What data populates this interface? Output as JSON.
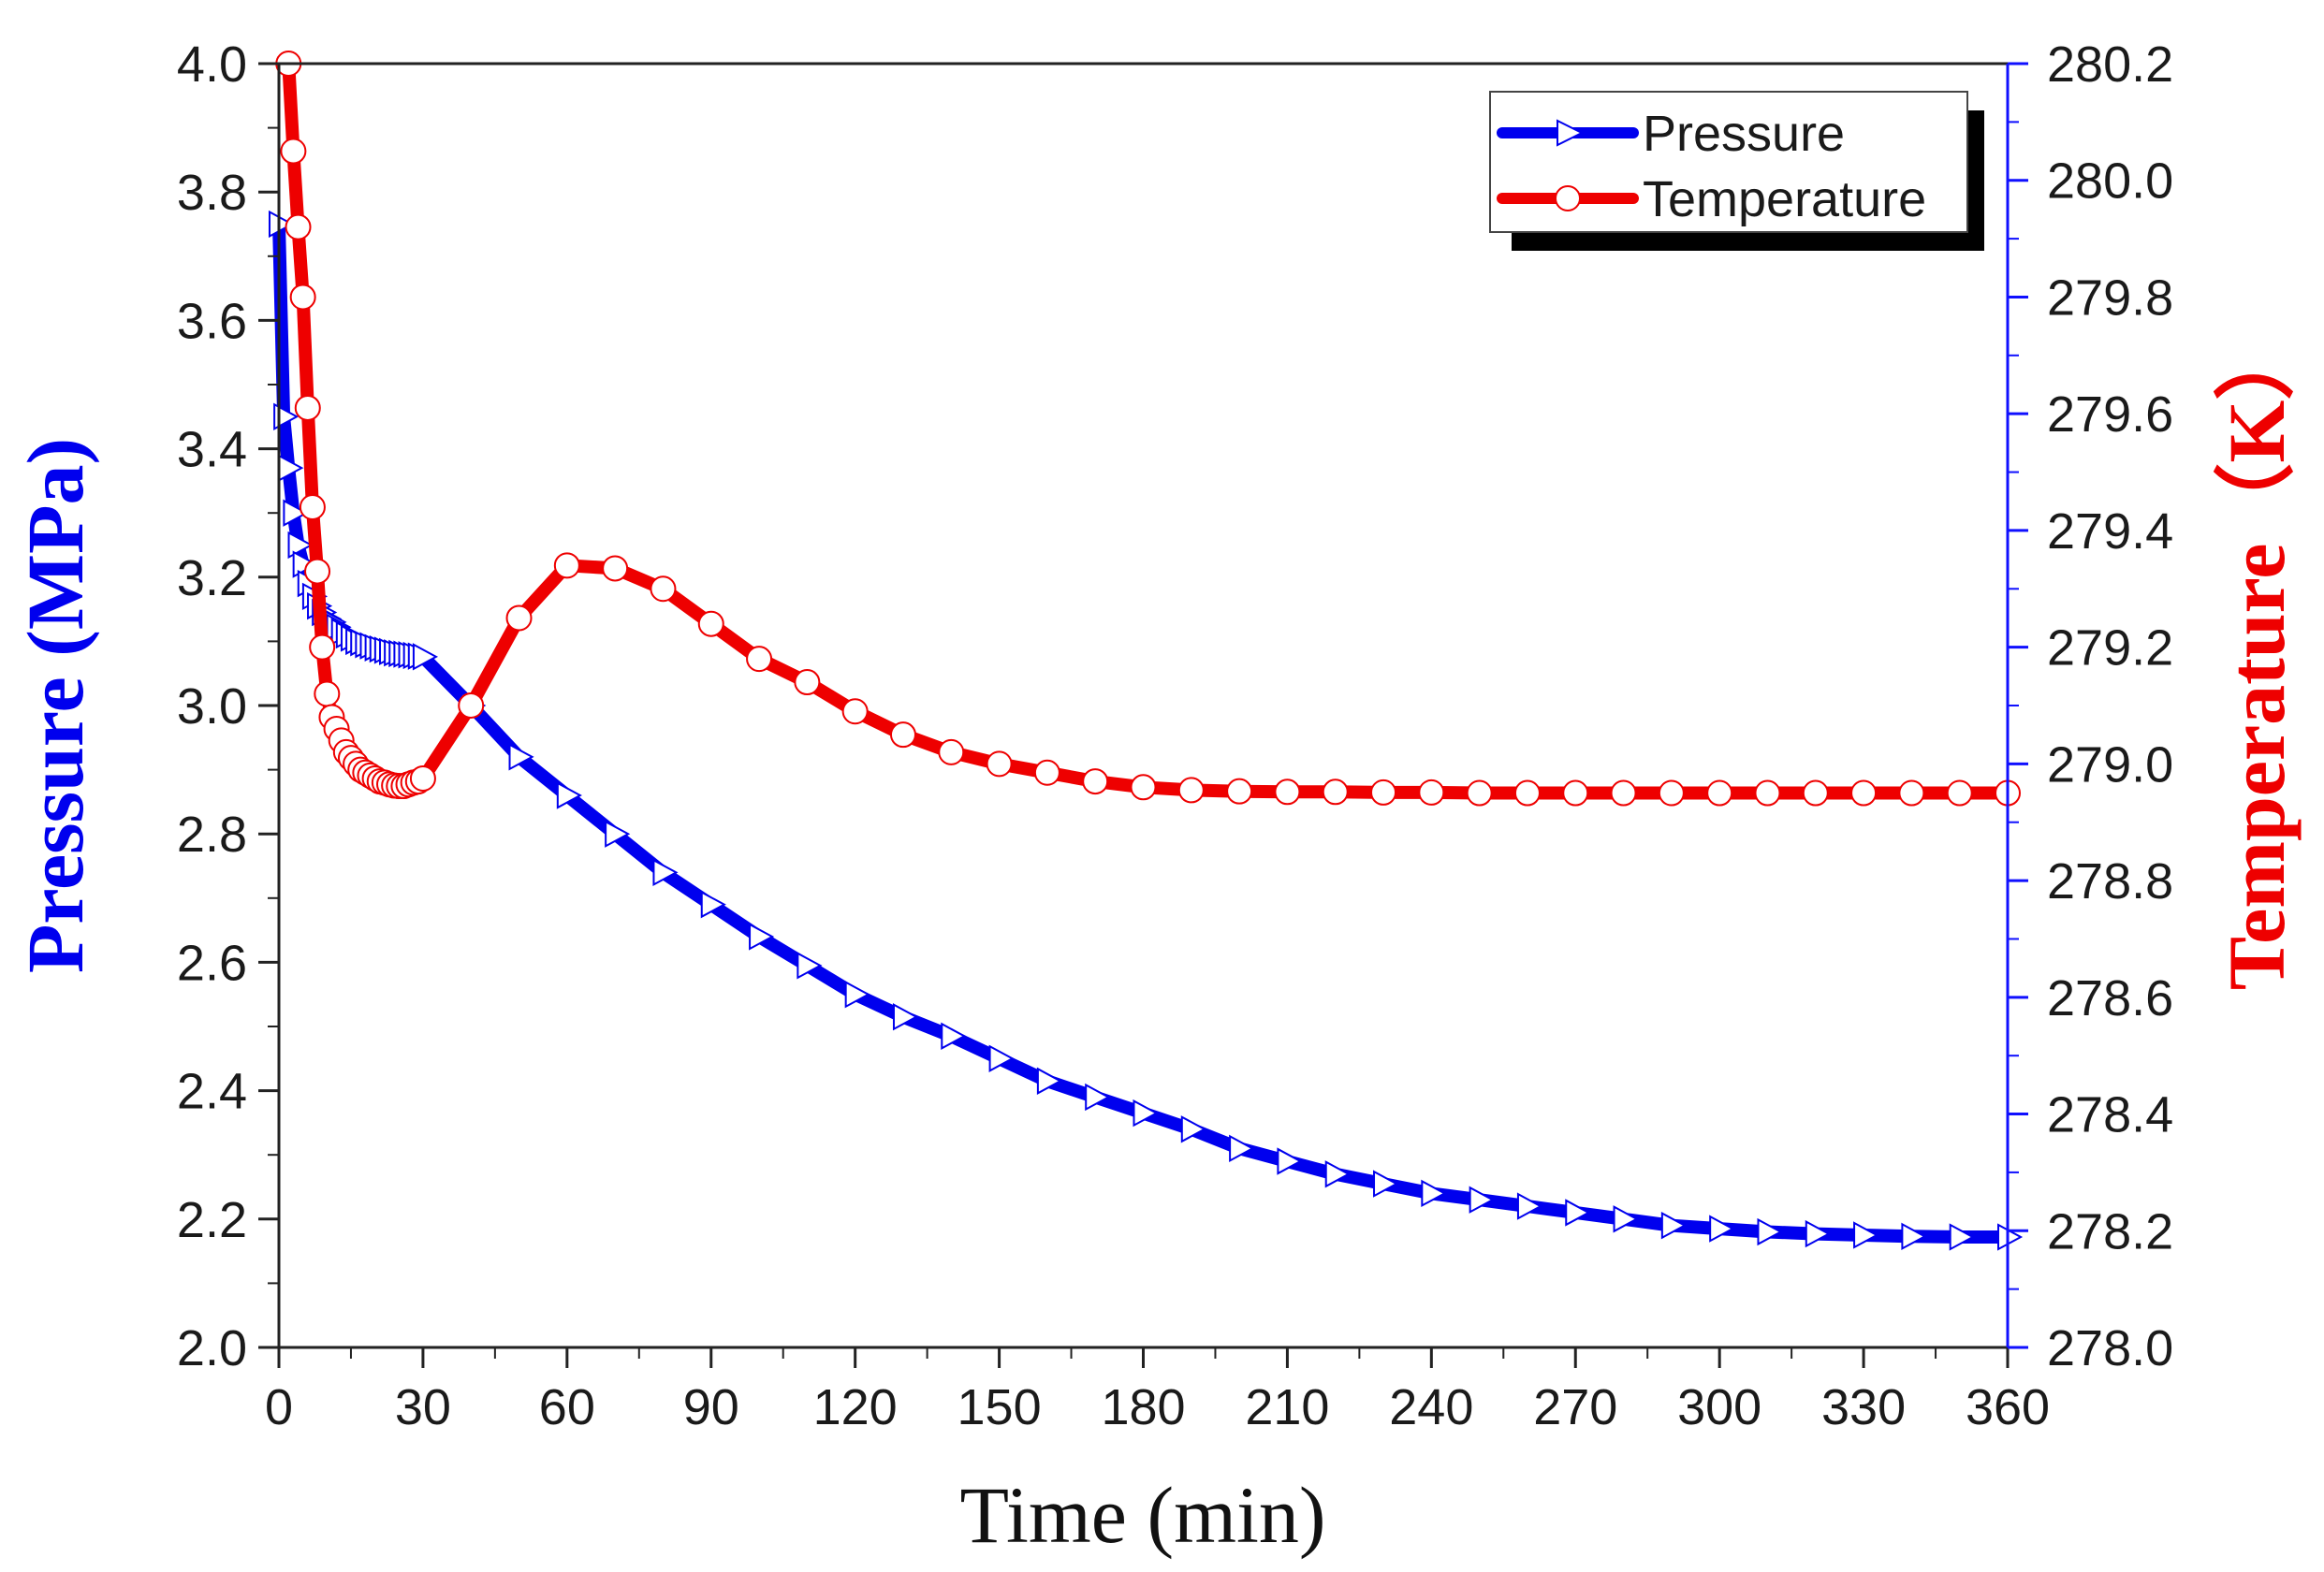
{
  "chart_data": {
    "type": "line",
    "title": "",
    "xlabel": "Time (min)",
    "ylabel_left": "Pressure (MPa)",
    "ylabel_right": "Temperature（K）",
    "xlim": [
      0,
      360
    ],
    "ylim_left": [
      2.0,
      4.0
    ],
    "ylim_right": [
      278.0,
      280.2
    ],
    "x_ticks": [
      "0",
      "30",
      "60",
      "90",
      "120",
      "150",
      "180",
      "210",
      "240",
      "270",
      "300",
      "330",
      "360"
    ],
    "y_left_ticks": [
      "2.0",
      "2.2",
      "2.4",
      "2.6",
      "2.8",
      "3.0",
      "3.2",
      "3.4",
      "3.6",
      "3.8",
      "4.0"
    ],
    "y_right_ticks": [
      "278.0",
      "278.2",
      "278.4",
      "278.6",
      "278.8",
      "279.0",
      "279.2",
      "279.4",
      "279.6",
      "279.8",
      "280.0",
      "280.2"
    ],
    "grid": false,
    "legend_position": "top-right",
    "series": [
      {
        "name": "Pressure",
        "axis": "left",
        "color": "#0000ee",
        "marker": "triangle-right",
        "x": [
          0,
          1,
          2,
          3,
          4,
          5,
          6,
          7,
          8,
          9,
          10,
          11,
          12,
          13,
          14,
          15,
          16,
          17,
          18,
          19,
          20,
          21,
          22,
          23,
          24,
          25,
          26,
          27,
          28,
          29,
          30,
          40,
          50,
          60,
          70,
          80,
          90,
          100,
          110,
          120,
          130,
          140,
          150,
          160,
          170,
          180,
          190,
          200,
          210,
          220,
          230,
          240,
          250,
          260,
          270,
          280,
          290,
          300,
          310,
          320,
          330,
          340,
          350,
          360
        ],
        "values": [
          3.75,
          3.45,
          3.37,
          3.3,
          3.25,
          3.22,
          3.19,
          3.17,
          3.155,
          3.145,
          3.135,
          3.13,
          3.122,
          3.115,
          3.11,
          3.105,
          3.1,
          3.098,
          3.095,
          3.093,
          3.09,
          3.088,
          3.086,
          3.084,
          3.082,
          3.081,
          3.08,
          3.079,
          3.078,
          3.077,
          3.076,
          3.0,
          2.92,
          2.86,
          2.8,
          2.74,
          2.69,
          2.64,
          2.595,
          2.55,
          2.515,
          2.485,
          2.45,
          2.415,
          2.39,
          2.365,
          2.34,
          2.31,
          2.29,
          2.27,
          2.255,
          2.24,
          2.23,
          2.22,
          2.21,
          2.2,
          2.19,
          2.185,
          2.18,
          2.177,
          2.175,
          2.173,
          2.172,
          2.172
        ]
      },
      {
        "name": "Temperature",
        "axis": "right",
        "color": "#ee0000",
        "marker": "circle",
        "x": [
          2,
          3,
          4,
          5,
          6,
          7,
          8,
          9,
          10,
          11,
          12,
          13,
          14,
          15,
          16,
          17,
          18,
          19,
          20,
          21,
          22,
          23,
          24,
          25,
          26,
          27,
          28,
          29,
          30,
          40,
          50,
          60,
          70,
          80,
          90,
          100,
          110,
          120,
          130,
          140,
          150,
          160,
          170,
          180,
          190,
          200,
          210,
          220,
          230,
          240,
          250,
          260,
          270,
          280,
          290,
          300,
          310,
          320,
          330,
          340,
          350,
          360
        ],
        "values": [
          280.2,
          280.05,
          279.92,
          279.8,
          279.61,
          279.44,
          279.33,
          279.2,
          279.12,
          279.08,
          279.06,
          279.04,
          279.02,
          279.01,
          279.0,
          278.99,
          278.985,
          278.98,
          278.975,
          278.97,
          278.968,
          278.965,
          278.963,
          278.962,
          278.962,
          278.965,
          278.968,
          278.97,
          278.975,
          279.1,
          279.25,
          279.34,
          279.335,
          279.3,
          279.24,
          279.18,
          279.14,
          279.09,
          279.05,
          279.02,
          279.0,
          278.985,
          278.97,
          278.96,
          278.955,
          278.953,
          278.952,
          278.952,
          278.951,
          278.951,
          278.95,
          278.95,
          278.95,
          278.95,
          278.95,
          278.95,
          278.95,
          278.95,
          278.95,
          278.95,
          278.95,
          278.95
        ]
      }
    ]
  }
}
